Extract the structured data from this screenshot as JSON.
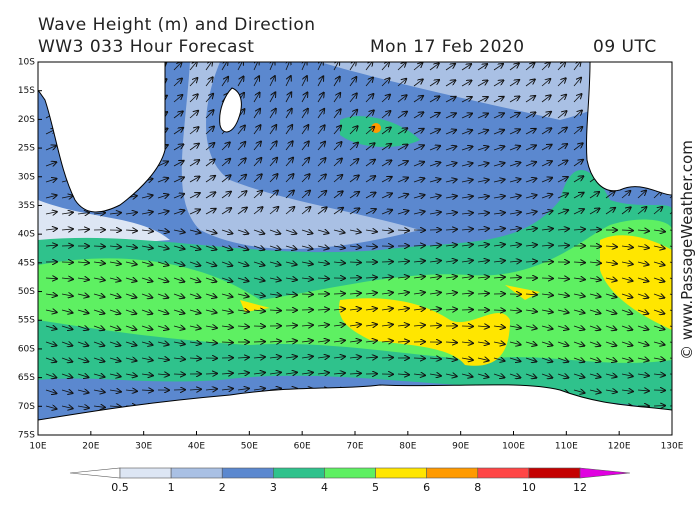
{
  "header": {
    "title": "Wave Height (m) and Direction",
    "subtitle": "WW3 033 Hour Forecast",
    "date": "Mon 17 Feb 2020",
    "time": "09 UTC"
  },
  "map": {
    "lat_labels": [
      "10S",
      "15S",
      "20S",
      "25S",
      "30S",
      "35S",
      "40S",
      "45S",
      "50S",
      "55S",
      "60S",
      "65S",
      "70S",
      "75S"
    ],
    "lon_labels": [
      "10E",
      "20E",
      "30E",
      "40E",
      "50E",
      "60E",
      "70E",
      "80E",
      "90E",
      "100E",
      "110E",
      "120E",
      "130E"
    ]
  },
  "legend": {
    "labels": [
      "0.5",
      "1",
      "2",
      "3",
      "4",
      "5",
      "6",
      "8",
      "10",
      "12"
    ],
    "colors": [
      "#ffffff",
      "#dde6f4",
      "#a9c0e4",
      "#5b88cf",
      "#2fc28c",
      "#5ef062",
      "#ffe600",
      "#ff9a00",
      "#ff4545",
      "#c40000",
      "#e000e0"
    ]
  },
  "watermark": "© www.PassageWeather.com"
}
